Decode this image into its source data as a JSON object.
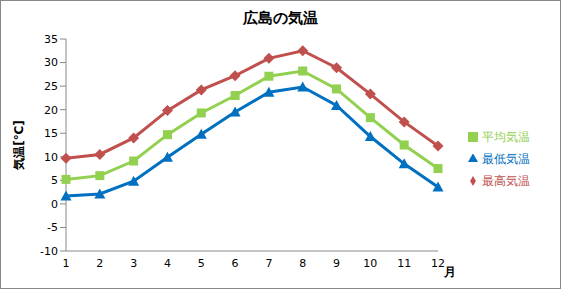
{
  "chart_data": {
    "type": "line",
    "title": "広島の気温",
    "x_label": "月",
    "y_label": "気温[℃]",
    "categories": [
      "1",
      "2",
      "3",
      "4",
      "5",
      "6",
      "7",
      "8",
      "9",
      "10",
      "11",
      "12"
    ],
    "series": [
      {
        "name": "平均気温",
        "color": "#92d050",
        "marker": "square",
        "values": [
          5.2,
          6.0,
          9.1,
          14.7,
          19.3,
          23.0,
          27.1,
          28.2,
          24.4,
          18.3,
          12.5,
          7.5
        ]
      },
      {
        "name": "最高気温",
        "color": "#c0504d",
        "marker": "diamond",
        "values": [
          9.7,
          10.5,
          14.0,
          19.8,
          24.2,
          27.2,
          30.9,
          32.5,
          28.9,
          23.3,
          17.4,
          12.3
        ]
      },
      {
        "name": "最低気温",
        "color": "#0070c0",
        "marker": "triangle",
        "values": [
          1.7,
          2.1,
          4.8,
          9.9,
          14.8,
          19.5,
          23.7,
          24.8,
          20.9,
          14.3,
          8.5,
          3.6
        ]
      }
    ],
    "ylim": [
      -10,
      35
    ],
    "yticks": [
      -10,
      -5,
      0,
      5,
      10,
      15,
      20,
      25,
      30,
      35
    ],
    "grid": false,
    "legend": "right"
  }
}
